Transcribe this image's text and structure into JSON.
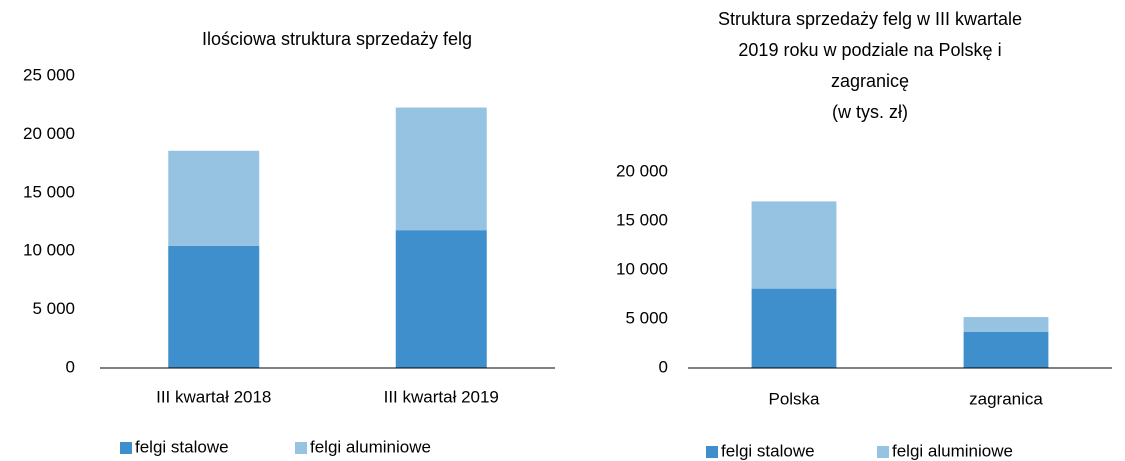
{
  "chart_data": [
    {
      "type": "bar",
      "stacked": true,
      "title": [
        "Ilościowa struktura sprzedaży felg"
      ],
      "categories": [
        "III kwartał 2018",
        "III kwartał 2019"
      ],
      "series": [
        {
          "name": "felgi stalowe",
          "color": "#3e8fcc",
          "values": [
            10450,
            11800
          ]
        },
        {
          "name": "felgi aluminiowe",
          "color": "#97c3e2",
          "values": [
            8150,
            10500
          ]
        }
      ],
      "ylim": [
        0,
        25000
      ],
      "yticks": [
        0,
        {
          "value": 5000,
          "label": "5 000"
        },
        {
          "value": 10000,
          "label": "10 000"
        },
        {
          "value": 15000,
          "label": "15 000"
        },
        {
          "value": 20000,
          "label": "20 000"
        },
        {
          "value": 25000,
          "label": "25 000"
        }
      ],
      "legend": "bottom"
    },
    {
      "type": "bar",
      "stacked": true,
      "title": [
        "Struktura sprzedaży felg w III kwartale",
        "2019 roku w podziale na Polskę i",
        "zagranicę",
        "(w tys. zł)"
      ],
      "categories": [
        "Polska",
        "zagranica"
      ],
      "series": [
        {
          "name": "felgi stalowe",
          "color": "#3e8fcc",
          "values": [
            8100,
            3700
          ]
        },
        {
          "name": "felgi aluminiowe",
          "color": "#97c3e2",
          "values": [
            8900,
            1500
          ]
        }
      ],
      "ylim": [
        0,
        20000
      ],
      "yticks": [
        0,
        {
          "value": 5000,
          "label": "5 000"
        },
        {
          "value": 10000,
          "label": "10 000"
        },
        {
          "value": 15000,
          "label": "15 000"
        },
        {
          "value": 20000,
          "label": "20 000"
        }
      ],
      "legend": "bottom"
    }
  ]
}
